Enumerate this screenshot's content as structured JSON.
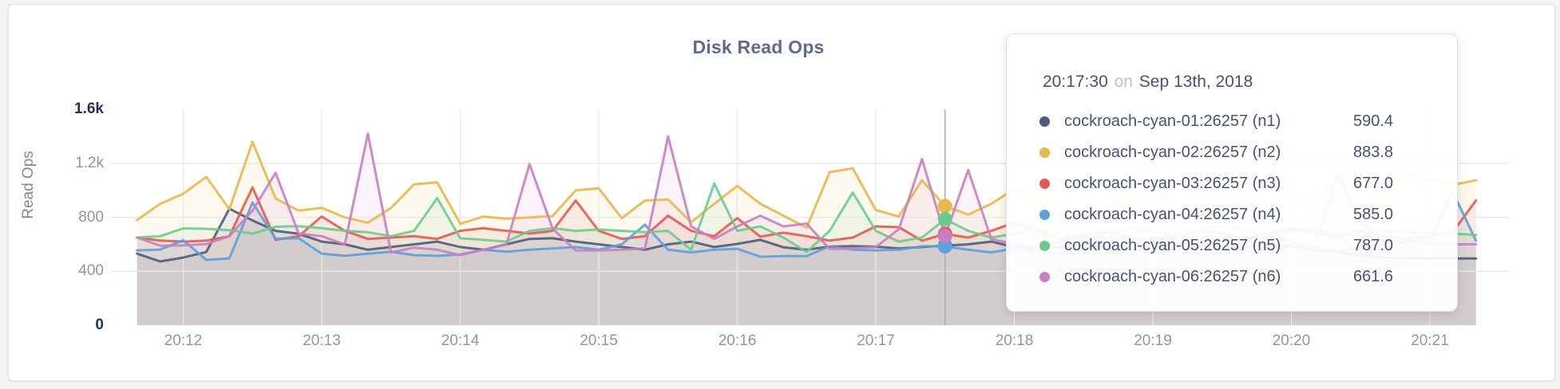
{
  "chart": {
    "title": "Disk Read Ops",
    "ylabel": "Read Ops",
    "type": "area",
    "x_start_time": "20:11:40",
    "x_step_seconds": 10,
    "grid": true,
    "legend_position": "tooltip",
    "x_axis": {
      "ticks": [
        "20:12",
        "20:13",
        "20:14",
        "20:15",
        "20:16",
        "20:17",
        "20:18",
        "20:19",
        "20:20",
        "20:21"
      ]
    },
    "y_axis": {
      "ylim": [
        0,
        1600
      ],
      "ticks": [
        {
          "label": "0",
          "value": 0,
          "emph": true
        },
        {
          "label": "400",
          "value": 400,
          "emph": false
        },
        {
          "label": "800",
          "value": 800,
          "emph": false
        },
        {
          "label": "1.2k",
          "value": 1200,
          "emph": false
        },
        {
          "label": "1.6k",
          "value": 1600,
          "emph": true
        }
      ]
    },
    "hover": {
      "time": "20:17:30",
      "index": 35
    },
    "series": [
      {
        "name": "cockroach-cyan-01:26257 (n1)",
        "color": "#4f5b78",
        "values": [
          531,
          473,
          502,
          543,
          864,
          777,
          700,
          678,
          620,
          600,
          560,
          580,
          600,
          620,
          580,
          560,
          600,
          640,
          645,
          620,
          600,
          580,
          560,
          600,
          620,
          580,
          603,
          633,
          578,
          560,
          583,
          587,
          582,
          570,
          580,
          590.4,
          600,
          620,
          580,
          560,
          580,
          600,
          570,
          550,
          570,
          600,
          580,
          560,
          580,
          600,
          580,
          560,
          540,
          520,
          500,
          495,
          495,
          495,
          495
        ]
      },
      {
        "name": "cockroach-cyan-02:26257 (n2)",
        "color": "#e7b84b",
        "values": [
          780,
          900,
          975,
          1100,
          860,
          1360,
          940,
          850,
          870,
          800,
          760,
          870,
          1045,
          1060,
          752,
          806,
          790,
          800,
          810,
          1000,
          1015,
          794,
          925,
          932,
          764,
          900,
          1033,
          900,
          812,
          723,
          1135,
          1164,
          854,
          806,
          1075,
          883.8,
          820,
          900,
          1010,
          950,
          860,
          800,
          870,
          930,
          1010,
          890,
          820,
          860,
          940,
          1060,
          980,
          900,
          1080,
          1100,
          960,
          1120,
          1080,
          1040,
          1075
        ]
      },
      {
        "name": "cockroach-cyan-03:26257 (n3)",
        "color": "#e25a51",
        "values": [
          650,
          628,
          620,
          628,
          660,
          1022,
          633,
          660,
          806,
          700,
          640,
          650,
          660,
          640,
          700,
          720,
          700,
          680,
          700,
          925,
          700,
          640,
          660,
          812,
          700,
          660,
          794,
          657,
          686,
          660,
          627,
          650,
          733,
          727,
          627,
          677,
          650,
          700,
          760,
          700,
          640,
          660,
          700,
          650,
          620,
          660,
          700,
          680,
          640,
          680,
          720,
          690,
          650,
          700,
          660,
          640,
          660,
          693,
          925
        ]
      },
      {
        "name": "cockroach-cyan-04:26257 (n4)",
        "color": "#5ca0dd",
        "values": [
          555,
          561,
          631,
          485,
          496,
          911,
          642,
          645,
          530,
          515,
          530,
          545,
          520,
          515,
          525,
          560,
          545,
          560,
          570,
          580,
          560,
          600,
          746,
          560,
          540,
          560,
          567,
          508,
          513,
          513,
          585,
          560,
          555,
          560,
          585,
          585,
          560,
          540,
          570,
          550,
          530,
          560,
          580,
          550,
          540,
          560,
          580,
          560,
          540,
          560,
          590,
          570,
          550,
          580,
          600,
          620,
          640,
          985,
          627
        ]
      },
      {
        "name": "cockroach-cyan-05:26257 (n5)",
        "color": "#6ccb8c",
        "values": [
          650,
          660,
          718,
          715,
          705,
          680,
          730,
          735,
          720,
          700,
          690,
          660,
          700,
          943,
          645,
          633,
          620,
          700,
          720,
          700,
          710,
          700,
          690,
          700,
          560,
          1051,
          700,
          733,
          650,
          543,
          700,
          985,
          700,
          620,
          650,
          787,
          700,
          650,
          680,
          720,
          680,
          640,
          680,
          720,
          700,
          660,
          700,
          740,
          700,
          660,
          700,
          720,
          680,
          660,
          700,
          690,
          685,
          680,
          670
        ]
      },
      {
        "name": "cockroach-cyan-06:26257 (n6)",
        "color": "#c87fc2",
        "values": [
          650,
          590,
          592,
          602,
          660,
          850,
          1130,
          680,
          660,
          600,
          1421,
          540,
          575,
          560,
          520,
          560,
          600,
          1195,
          716,
          555,
          555,
          560,
          570,
          1400,
          733,
          640,
          733,
          812,
          733,
          754,
          565,
          570,
          580,
          713,
          1232,
          661.6,
          1150,
          640,
          600,
          580,
          620,
          680,
          590,
          560,
          600,
          640,
          580,
          560,
          610,
          660,
          620,
          580,
          1120,
          760,
          640,
          625,
          610,
          600,
          600
        ]
      }
    ]
  },
  "tooltip": {
    "time": "20:17:30",
    "on_word": "on",
    "date": "Sep 13th, 2018",
    "rows": [
      {
        "label": "cockroach-cyan-01:26257 (n1)",
        "value": "590.4"
      },
      {
        "label": "cockroach-cyan-02:26257 (n2)",
        "value": "883.8"
      },
      {
        "label": "cockroach-cyan-03:26257 (n3)",
        "value": "677.0"
      },
      {
        "label": "cockroach-cyan-04:26257 (n4)",
        "value": "585.0"
      },
      {
        "label": "cockroach-cyan-05:26257 (n5)",
        "value": "787.0"
      },
      {
        "label": "cockroach-cyan-06:26257 (n6)",
        "value": "661.6"
      }
    ]
  }
}
